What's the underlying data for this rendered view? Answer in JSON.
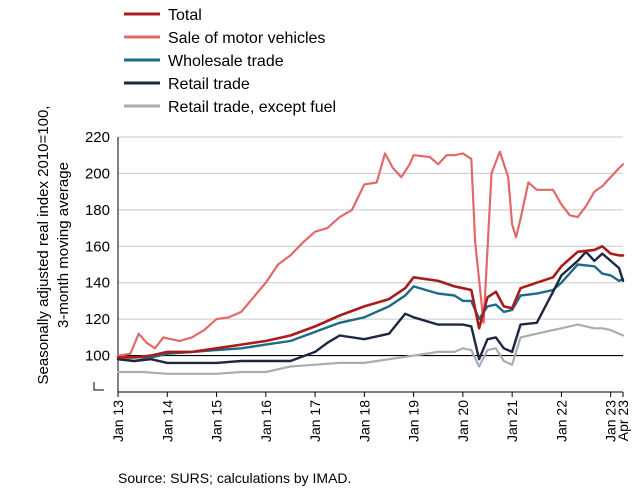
{
  "chart_data": {
    "type": "line",
    "title": "",
    "ylabel_line1": "Seasonally adjusted real index 2010=100,",
    "ylabel_line2": "3-month moving average",
    "source": "Source: SURS; calculations by IMAD.",
    "ylim": [
      80,
      220
    ],
    "yticks": [
      "220",
      "200",
      "180",
      "160",
      "140",
      "120",
      "100"
    ],
    "ytick_values": [
      220,
      200,
      180,
      160,
      140,
      120,
      100
    ],
    "reference_line": 100,
    "xticks": [
      "Jan 13",
      "Jan 14",
      "Jan 15",
      "Jan 16",
      "Jan 17",
      "Jan 18",
      "Jan 19",
      "Jan 20",
      "Jan 21",
      "Jan 22",
      "Jan 23",
      "Apr 23"
    ],
    "xtick_values": [
      2013.0,
      2014.0,
      2015.0,
      2016.0,
      2017.0,
      2018.0,
      2019.0,
      2020.0,
      2021.0,
      2022.0,
      2023.0,
      2023.25
    ],
    "xlim": [
      2013.0,
      2023.25
    ],
    "grid": "horizontal",
    "legend_position": "top",
    "series": [
      {
        "name": "Total",
        "color": "#a81c1c",
        "width": 2.6,
        "points": [
          [
            2013.0,
            99
          ],
          [
            2013.33,
            99
          ],
          [
            2013.67,
            100
          ],
          [
            2014.0,
            102
          ],
          [
            2014.5,
            102
          ],
          [
            2015.0,
            104
          ],
          [
            2015.5,
            106
          ],
          [
            2016.0,
            108
          ],
          [
            2016.5,
            111
          ],
          [
            2017.0,
            116
          ],
          [
            2017.5,
            122
          ],
          [
            2018.0,
            127
          ],
          [
            2018.5,
            131
          ],
          [
            2018.83,
            137
          ],
          [
            2019.0,
            143
          ],
          [
            2019.5,
            141
          ],
          [
            2019.83,
            138
          ],
          [
            2020.0,
            137
          ],
          [
            2020.17,
            136
          ],
          [
            2020.33,
            115
          ],
          [
            2020.5,
            132
          ],
          [
            2020.67,
            135
          ],
          [
            2020.83,
            127
          ],
          [
            2021.0,
            126
          ],
          [
            2021.17,
            137
          ],
          [
            2021.5,
            140
          ],
          [
            2021.83,
            143
          ],
          [
            2022.0,
            149
          ],
          [
            2022.33,
            157
          ],
          [
            2022.67,
            158
          ],
          [
            2022.83,
            160
          ],
          [
            2023.0,
            156
          ],
          [
            2023.17,
            155
          ],
          [
            2023.25,
            155
          ]
        ]
      },
      {
        "name": "Sale of motor vehicles",
        "color": "#e06a6a",
        "width": 2.2,
        "points": [
          [
            2013.0,
            100
          ],
          [
            2013.25,
            101
          ],
          [
            2013.42,
            112
          ],
          [
            2013.58,
            107
          ],
          [
            2013.75,
            104
          ],
          [
            2013.92,
            110
          ],
          [
            2014.08,
            109
          ],
          [
            2014.25,
            108
          ],
          [
            2014.5,
            110
          ],
          [
            2014.75,
            114
          ],
          [
            2015.0,
            120
          ],
          [
            2015.25,
            121
          ],
          [
            2015.5,
            124
          ],
          [
            2015.75,
            132
          ],
          [
            2016.0,
            140
          ],
          [
            2016.25,
            150
          ],
          [
            2016.5,
            155
          ],
          [
            2016.75,
            162
          ],
          [
            2017.0,
            168
          ],
          [
            2017.25,
            170
          ],
          [
            2017.5,
            176
          ],
          [
            2017.75,
            180
          ],
          [
            2018.0,
            194
          ],
          [
            2018.25,
            195
          ],
          [
            2018.42,
            211
          ],
          [
            2018.58,
            203
          ],
          [
            2018.75,
            198
          ],
          [
            2018.92,
            205
          ],
          [
            2019.0,
            210
          ],
          [
            2019.33,
            209
          ],
          [
            2019.5,
            205
          ],
          [
            2019.67,
            210
          ],
          [
            2019.83,
            210
          ],
          [
            2020.0,
            211
          ],
          [
            2020.17,
            208
          ],
          [
            2020.25,
            162
          ],
          [
            2020.42,
            118
          ],
          [
            2020.58,
            200
          ],
          [
            2020.75,
            212
          ],
          [
            2020.92,
            198
          ],
          [
            2021.0,
            172
          ],
          [
            2021.08,
            165
          ],
          [
            2021.17,
            175
          ],
          [
            2021.33,
            195
          ],
          [
            2021.5,
            191
          ],
          [
            2021.67,
            191
          ],
          [
            2021.83,
            191
          ],
          [
            2022.0,
            183
          ],
          [
            2022.17,
            177
          ],
          [
            2022.33,
            176
          ],
          [
            2022.5,
            182
          ],
          [
            2022.67,
            190
          ],
          [
            2022.83,
            193
          ],
          [
            2023.0,
            198
          ],
          [
            2023.17,
            203
          ],
          [
            2023.25,
            205
          ]
        ]
      },
      {
        "name": "Wholesale trade",
        "color": "#1d6b84",
        "width": 2.4,
        "points": [
          [
            2013.0,
            98
          ],
          [
            2013.33,
            97
          ],
          [
            2013.67,
            99
          ],
          [
            2014.0,
            101
          ],
          [
            2014.5,
            102
          ],
          [
            2015.0,
            103
          ],
          [
            2015.5,
            104
          ],
          [
            2016.0,
            106
          ],
          [
            2016.5,
            108
          ],
          [
            2017.0,
            113
          ],
          [
            2017.5,
            118
          ],
          [
            2018.0,
            121
          ],
          [
            2018.5,
            127
          ],
          [
            2018.83,
            133
          ],
          [
            2019.0,
            138
          ],
          [
            2019.5,
            134
          ],
          [
            2019.83,
            133
          ],
          [
            2020.0,
            130
          ],
          [
            2020.17,
            130
          ],
          [
            2020.33,
            120
          ],
          [
            2020.5,
            127
          ],
          [
            2020.67,
            128
          ],
          [
            2020.83,
            124
          ],
          [
            2021.0,
            125
          ],
          [
            2021.17,
            133
          ],
          [
            2021.5,
            134
          ],
          [
            2021.83,
            136
          ],
          [
            2022.0,
            140
          ],
          [
            2022.33,
            150
          ],
          [
            2022.67,
            149
          ],
          [
            2022.83,
            145
          ],
          [
            2023.0,
            144
          ],
          [
            2023.17,
            141
          ],
          [
            2023.25,
            142
          ]
        ]
      },
      {
        "name": "Retail trade",
        "color": "#1c2744",
        "width": 2.4,
        "points": [
          [
            2013.0,
            98
          ],
          [
            2013.33,
            97
          ],
          [
            2013.67,
            98
          ],
          [
            2014.0,
            96
          ],
          [
            2014.5,
            96
          ],
          [
            2015.0,
            96
          ],
          [
            2015.5,
            97
          ],
          [
            2016.0,
            97
          ],
          [
            2016.5,
            97
          ],
          [
            2017.0,
            102
          ],
          [
            2017.25,
            107
          ],
          [
            2017.5,
            111
          ],
          [
            2018.0,
            109
          ],
          [
            2018.5,
            112
          ],
          [
            2018.83,
            123
          ],
          [
            2019.0,
            121
          ],
          [
            2019.5,
            117
          ],
          [
            2019.83,
            117
          ],
          [
            2020.0,
            117
          ],
          [
            2020.17,
            116
          ],
          [
            2020.33,
            98
          ],
          [
            2020.5,
            109
          ],
          [
            2020.67,
            110
          ],
          [
            2020.83,
            104
          ],
          [
            2021.0,
            102
          ],
          [
            2021.17,
            117
          ],
          [
            2021.5,
            118
          ],
          [
            2021.83,
            135
          ],
          [
            2022.0,
            144
          ],
          [
            2022.33,
            152
          ],
          [
            2022.5,
            157
          ],
          [
            2022.67,
            152
          ],
          [
            2022.83,
            156
          ],
          [
            2023.0,
            152
          ],
          [
            2023.17,
            148
          ],
          [
            2023.25,
            141
          ]
        ]
      },
      {
        "name": "Retail trade, except fuel",
        "color": "#a9adb1",
        "width": 2.2,
        "points": [
          [
            2013.0,
            91
          ],
          [
            2013.5,
            91
          ],
          [
            2014.0,
            90
          ],
          [
            2014.5,
            90
          ],
          [
            2015.0,
            90
          ],
          [
            2015.5,
            91
          ],
          [
            2016.0,
            91
          ],
          [
            2016.5,
            94
          ],
          [
            2017.0,
            95
          ],
          [
            2017.5,
            96
          ],
          [
            2018.0,
            96
          ],
          [
            2018.5,
            98
          ],
          [
            2019.0,
            100
          ],
          [
            2019.5,
            102
          ],
          [
            2019.83,
            102
          ],
          [
            2020.0,
            104
          ],
          [
            2020.17,
            103
          ],
          [
            2020.33,
            94
          ],
          [
            2020.5,
            103
          ],
          [
            2020.67,
            104
          ],
          [
            2020.83,
            97
          ],
          [
            2021.0,
            95
          ],
          [
            2021.17,
            110
          ],
          [
            2021.5,
            112
          ],
          [
            2021.83,
            114
          ],
          [
            2022.0,
            115
          ],
          [
            2022.33,
            117
          ],
          [
            2022.67,
            115
          ],
          [
            2022.83,
            115
          ],
          [
            2023.0,
            114
          ],
          [
            2023.17,
            112
          ],
          [
            2023.25,
            111
          ]
        ]
      }
    ]
  }
}
